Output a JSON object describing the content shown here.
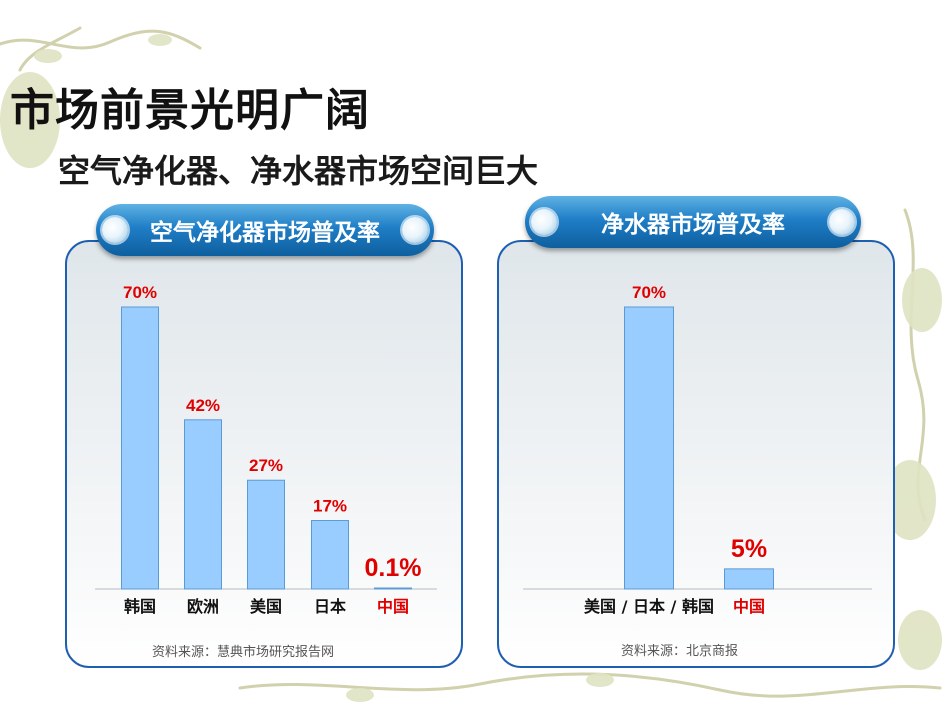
{
  "title": "市场前景光明广阔",
  "subtitle": "空气净化器、净水器市场空间巨大",
  "colors": {
    "bar": "#99ccff",
    "bar_edge": "#5b9bd5",
    "label_red": "#e00000",
    "pill": "#1f7ec7",
    "border": "#1f5fb0"
  },
  "chart_data": [
    {
      "type": "bar",
      "title": "空气净化器市场普及率",
      "categories": [
        "韩国",
        "欧洲",
        "美国",
        "日本",
        "中国"
      ],
      "values": [
        70,
        42,
        27,
        17,
        0.1
      ],
      "data_labels": [
        "70%",
        "42%",
        "27%",
        "17%",
        "0.1%"
      ],
      "highlight_category": "中国",
      "ylim": [
        0,
        70
      ],
      "grid": false,
      "source": "资料来源：慧典市场研究报告网"
    },
    {
      "type": "bar",
      "title": "净水器市场普及率",
      "categories": [
        "美国 / 日本 / 韩国",
        "中国"
      ],
      "values": [
        70,
        5
      ],
      "data_labels": [
        "70%",
        "5%"
      ],
      "highlight_category": "中国",
      "ylim": [
        0,
        70
      ],
      "grid": false,
      "source": "资料来源：北京商报"
    }
  ]
}
